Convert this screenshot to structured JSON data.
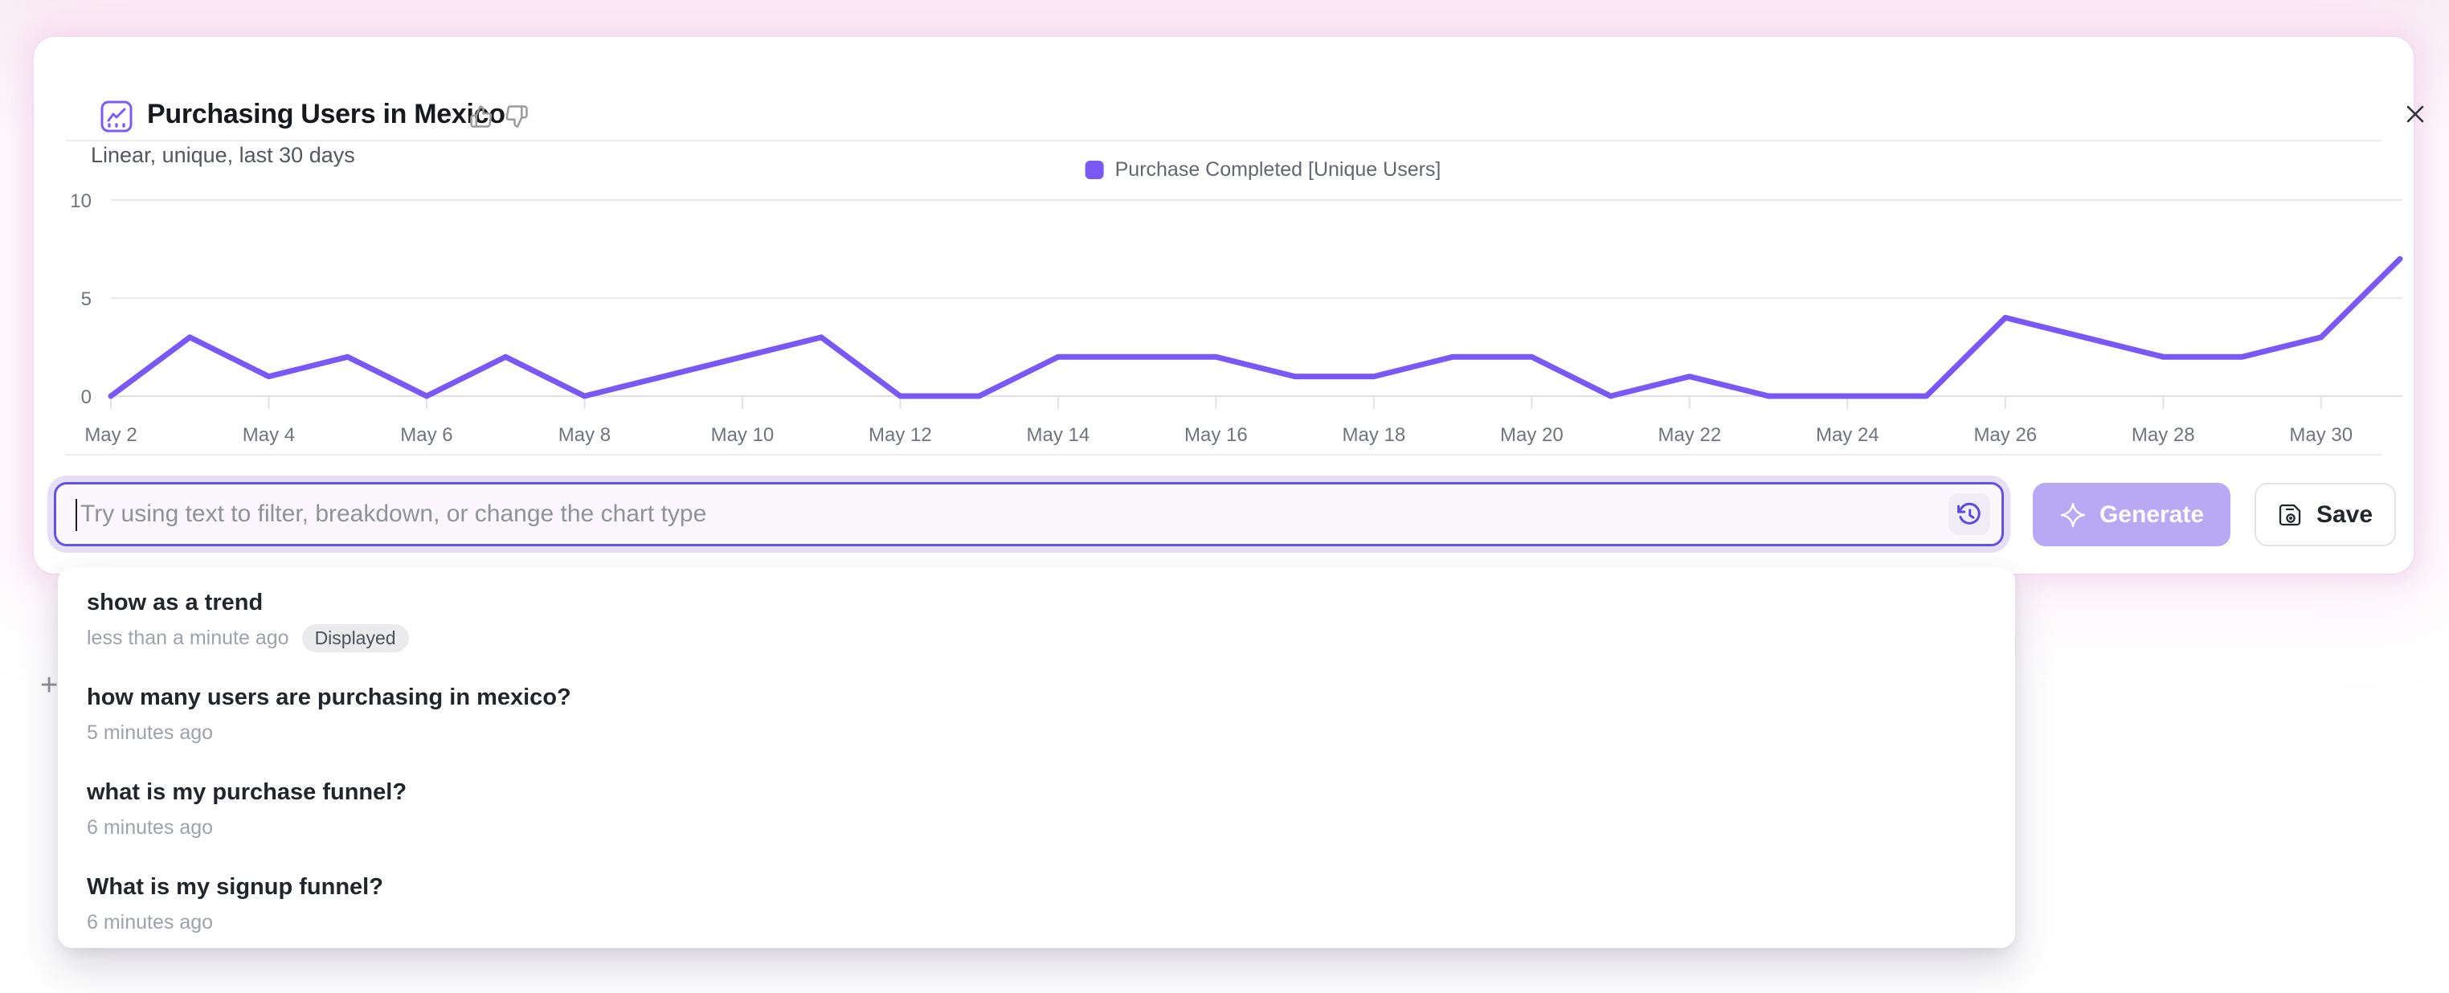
{
  "card": {
    "title": "Purchasing Users in Mexico",
    "subtitle": "Linear, unique, last 30 days"
  },
  "chart_data": {
    "type": "line",
    "legend": "Purchase Completed [Unique Users]",
    "legend_position": "top-center",
    "grid": "horizontal-only",
    "categories": [
      "May 2",
      "May 3",
      "May 4",
      "May 5",
      "May 6",
      "May 7",
      "May 8",
      "May 9",
      "May 10",
      "May 11",
      "May 12",
      "May 13",
      "May 14",
      "May 15",
      "May 16",
      "May 17",
      "May 18",
      "May 19",
      "May 20",
      "May 21",
      "May 22",
      "May 23",
      "May 24",
      "May 25",
      "May 26",
      "May 27",
      "May 28",
      "May 29",
      "May 30",
      "May 31"
    ],
    "values": [
      0,
      3,
      1,
      2,
      0,
      2,
      0,
      1,
      2,
      3,
      0,
      0,
      2,
      2,
      2,
      1,
      1,
      2,
      2,
      0,
      1,
      0,
      0,
      0,
      4,
      3,
      2,
      2,
      3,
      7
    ],
    "xtick_labels": [
      "May 2",
      "May 4",
      "May 6",
      "May 8",
      "May 10",
      "May 12",
      "May 14",
      "May 16",
      "May 18",
      "May 20",
      "May 22",
      "May 24",
      "May 26",
      "May 28",
      "May 30"
    ],
    "yticks": [
      0,
      5,
      10
    ],
    "ylim": [
      0,
      10
    ],
    "series_color": "#7A58F5"
  },
  "composer": {
    "placeholder": "Try using text to filter, breakdown, or change the chart type",
    "generate_label": "Generate",
    "save_label": "Save"
  },
  "history_dropdown": {
    "items": [
      {
        "query": "show as a trend",
        "time": "less than a minute ago",
        "badge": "Displayed"
      },
      {
        "query": "how many users are purchasing in mexico?",
        "time": "5 minutes ago",
        "badge": ""
      },
      {
        "query": "what is my purchase funnel?",
        "time": "6 minutes ago",
        "badge": ""
      },
      {
        "query": "What is my signup funnel?",
        "time": "6 minutes ago",
        "badge": ""
      }
    ]
  },
  "background": {
    "partial_plus_glyph": "+"
  },
  "colors": {
    "accent_purple": "#7A58F5",
    "input_border": "#6253E3",
    "generate_bg": "#B9A8F3",
    "card_glow": "#F3D9EE",
    "badge_bg": "#EBEBEE",
    "gridline": "#E8E8EB",
    "axis_text": "#70747C"
  }
}
